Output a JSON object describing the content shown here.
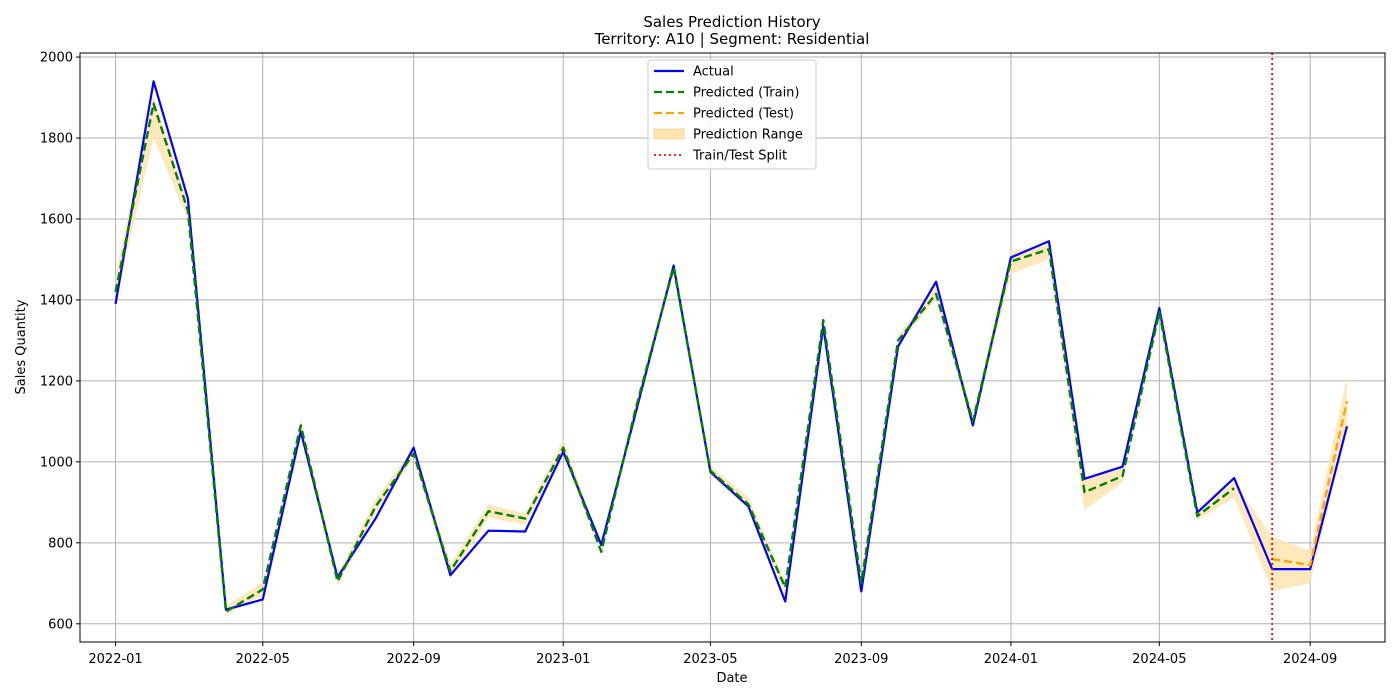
{
  "chart_data": {
    "type": "line",
    "title": "Sales Prediction History",
    "subtitle": "Territory: A10 | Segment: Residential",
    "xlabel": "Date",
    "ylabel": "Sales Quantity",
    "ylim": [
      555,
      2010
    ],
    "xlim": [
      "2021-12-03",
      "2024-11-01"
    ],
    "grid": true,
    "legend_position": "top-center",
    "yticks": [
      600,
      800,
      1000,
      1200,
      1400,
      1600,
      1800,
      2000
    ],
    "xticks": [
      "2022-01",
      "2022-05",
      "2022-09",
      "2023-01",
      "2023-05",
      "2023-09",
      "2024-01",
      "2024-05",
      "2024-09"
    ],
    "colors": {
      "actual": "#0000ff",
      "train": "#008000",
      "test": "#ffa500",
      "range": "#ffe4b0",
      "split": "#ff0000",
      "grid": "#b0b0b0"
    },
    "legend": [
      {
        "key": "actual",
        "label": "Actual"
      },
      {
        "key": "train",
        "label": "Predicted (Train)"
      },
      {
        "key": "test",
        "label": "Predicted (Test)"
      },
      {
        "key": "range",
        "label": "Prediction Range"
      },
      {
        "key": "split",
        "label": "Train/Test Split"
      }
    ],
    "split_date": "2024-08-01",
    "x": [
      "2022-01-01",
      "2022-02-01",
      "2022-03-01",
      "2022-04-01",
      "2022-05-01",
      "2022-06-01",
      "2022-07-01",
      "2022-08-01",
      "2022-09-01",
      "2022-10-01",
      "2022-11-01",
      "2022-12-01",
      "2023-01-01",
      "2023-02-01",
      "2023-03-01",
      "2023-04-01",
      "2023-05-01",
      "2023-06-01",
      "2023-07-01",
      "2023-08-01",
      "2023-09-01",
      "2023-10-01",
      "2023-11-01",
      "2023-12-01",
      "2024-01-01",
      "2024-02-01",
      "2024-03-01",
      "2024-04-01",
      "2024-05-01",
      "2024-06-01",
      "2024-07-01",
      "2024-08-01",
      "2024-09-01",
      "2024-10-01"
    ],
    "series": [
      {
        "name": "Actual",
        "key": "actual",
        "values": [
          1390,
          1940,
          1650,
          635,
          660,
          1075,
          715,
          860,
          1035,
          720,
          830,
          828,
          1025,
          795,
          1120,
          1485,
          975,
          890,
          655,
          1335,
          680,
          1285,
          1445,
          1090,
          1505,
          1545,
          958,
          988,
          1380,
          875,
          960,
          735,
          735,
          1088
        ]
      },
      {
        "name": "Predicted (Train)",
        "key": "train",
        "values": [
          1420,
          1885,
          1620,
          630,
          685,
          1090,
          705,
          890,
          1020,
          730,
          878,
          860,
          1035,
          778,
          1130,
          1480,
          978,
          895,
          690,
          1350,
          700,
          1300,
          1415,
          1100,
          1495,
          1525,
          925,
          965,
          1370,
          866,
          935,
          null,
          null,
          null
        ]
      },
      {
        "name": "Predicted (Test)",
        "key": "test",
        "values": [
          null,
          null,
          null,
          null,
          null,
          null,
          null,
          null,
          null,
          null,
          null,
          null,
          null,
          null,
          null,
          null,
          null,
          null,
          null,
          null,
          null,
          null,
          null,
          null,
          null,
          null,
          null,
          null,
          null,
          null,
          null,
          760,
          745,
          1150
        ]
      }
    ],
    "range_lower": [
      1395,
      1800,
      1600,
      622,
      670,
      1070,
      695,
      875,
      1008,
      712,
      862,
      845,
      1020,
      768,
      1115,
      1470,
      966,
      883,
      675,
      1335,
      688,
      1288,
      1402,
      1082,
      1465,
      1500,
      880,
      950,
      1356,
      855,
      912,
      680,
      700,
      1090
    ],
    "range_upper": [
      1460,
      1905,
      1640,
      645,
      702,
      1105,
      722,
      908,
      1035,
      748,
      895,
      872,
      1055,
      792,
      1145,
      1492,
      990,
      912,
      705,
      1365,
      715,
      1312,
      1430,
      1115,
      1520,
      1535,
      960,
      982,
      1385,
      880,
      950,
      815,
      780,
      1210
    ]
  }
}
